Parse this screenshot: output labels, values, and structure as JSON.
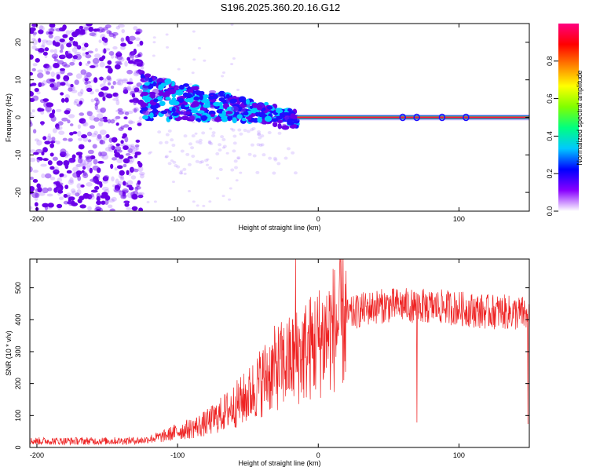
{
  "title": "S196.2025.360.20.16.G12",
  "chart_data": [
    {
      "type": "heatmap",
      "xlabel": "Height of straight line (km)",
      "ylabel": "Frequency (Hz)",
      "xlim": [
        -205,
        150
      ],
      "ylim": [
        -25,
        25
      ],
      "xticks": [
        -200,
        -100,
        0,
        100
      ],
      "yticks": [
        -20,
        -10,
        0,
        10,
        20
      ],
      "colorbar": {
        "label": "Normalized spectral amplitude",
        "range": [
          0,
          1
        ],
        "ticks": [
          "0.0",
          "0.2",
          "0.4",
          "0.6",
          "0.8"
        ],
        "colormap": [
          "#ffffff",
          "#8800ff",
          "#0000ff",
          "#00c8ff",
          "#00ff80",
          "#80ff00",
          "#ffff00",
          "#ff8000",
          "#ff0000",
          "#ff0080"
        ]
      },
      "features": {
        "noise_region_km": [
          -205,
          -125
        ],
        "transition_region_km": [
          -125,
          -15
        ],
        "stable_line_km": [
          -15,
          150
        ],
        "stable_line_freq_hz": 0
      }
    },
    {
      "type": "line",
      "xlabel": "Height of straight line (km)",
      "ylabel": "SNR (10 * v/v)",
      "xlim": [
        -205,
        150
      ],
      "ylim": [
        0,
        590
      ],
      "xticks": [
        -200,
        -100,
        0,
        100
      ],
      "yticks": [
        0,
        100,
        200,
        300,
        400,
        500
      ],
      "color": "#ee2222",
      "series": [
        {
          "name": "SNR",
          "x": [
            -205,
            -180,
            -150,
            -125,
            -110,
            -100,
            -90,
            -80,
            -70,
            -60,
            -50,
            -40,
            -30,
            -20,
            -10,
            0,
            10,
            20,
            30,
            40,
            50,
            60,
            70,
            80,
            90,
            100,
            110,
            120,
            130,
            140,
            150
          ],
          "y": [
            20,
            20,
            20,
            22,
            35,
            50,
            60,
            75,
            100,
            130,
            160,
            210,
            250,
            270,
            300,
            330,
            370,
            410,
            430,
            440,
            445,
            445,
            445,
            440,
            440,
            435,
            430,
            425,
            425,
            420,
            420
          ]
        }
      ]
    }
  ]
}
